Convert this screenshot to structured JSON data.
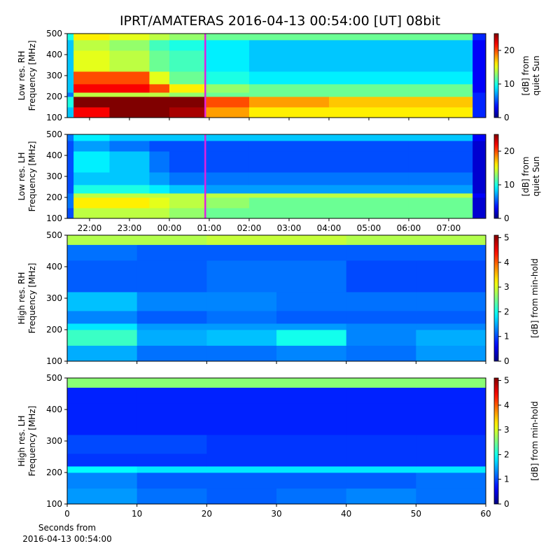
{
  "title": "IPRT/AMATERAS 2016-04-13 00:54:00 [UT]   08bit",
  "chart_data": [
    {
      "type": "heatmap",
      "ylabel": [
        "Low res. RH",
        "Frequency [MHz]"
      ],
      "colorbar_label": [
        "[dB] from",
        "quiet Sun"
      ],
      "xlim": [
        21.44,
        31.93
      ],
      "ylim": [
        100,
        500
      ],
      "yticks": [
        100,
        200,
        300,
        400,
        500
      ],
      "xticks": [
        {
          "value": 22,
          "label": "22:00"
        },
        {
          "value": 23,
          "label": "23:00"
        },
        {
          "value": 24,
          "label": "00:00"
        },
        {
          "value": 25,
          "label": "01:00"
        },
        {
          "value": 26,
          "label": "02:00"
        },
        {
          "value": 27,
          "label": "03:00"
        },
        {
          "value": 28,
          "label": "04:00"
        },
        {
          "value": 29,
          "label": "05:00"
        },
        {
          "value": 30,
          "label": "06:00"
        },
        {
          "value": 31,
          "label": "07:00"
        }
      ],
      "show_xticklabels": false,
      "clim": [
        0,
        25
      ],
      "cticks": [
        0,
        10,
        20
      ],
      "colormap": "jet",
      "marker_x": 24.9,
      "marker_color": "#e020e0",
      "xbins": [
        21.44,
        21.6,
        22.5,
        23.5,
        24.0,
        24.9,
        26,
        28,
        30,
        31.6,
        31.93
      ],
      "ybins": [
        100,
        150,
        200,
        220,
        260,
        320,
        420,
        470,
        500
      ],
      "z": [
        [
          8,
          22,
          25,
          25,
          24,
          18,
          16,
          16,
          16,
          4
        ],
        [
          10,
          25,
          25,
          25,
          25,
          20,
          18,
          17,
          17,
          4
        ],
        [
          6,
          14,
          14,
          14,
          13,
          12,
          12,
          12,
          12,
          4
        ],
        [
          8,
          22,
          22,
          20,
          16,
          13,
          12,
          12,
          12,
          3
        ],
        [
          8,
          20,
          20,
          15,
          12,
          10,
          9,
          9,
          9,
          3
        ],
        [
          8,
          15,
          14,
          12,
          11,
          9,
          8,
          8,
          8,
          3
        ],
        [
          8,
          14,
          13,
          11,
          10,
          9,
          8,
          8,
          8,
          3
        ],
        [
          10,
          16,
          15,
          14,
          13,
          12,
          12,
          12,
          12,
          4
        ]
      ]
    },
    {
      "type": "heatmap",
      "ylabel": [
        "Low res. LH",
        "Frequency [MHz]"
      ],
      "colorbar_label": [
        "[dB] from",
        "quiet Sun"
      ],
      "xlim": [
        21.44,
        31.93
      ],
      "ylim": [
        100,
        500
      ],
      "yticks": [
        100,
        200,
        300,
        400,
        500
      ],
      "xticks": [
        {
          "value": 22,
          "label": "22:00"
        },
        {
          "value": 23,
          "label": "23:00"
        },
        {
          "value": 24,
          "label": "00:00"
        },
        {
          "value": 25,
          "label": "01:00"
        },
        {
          "value": 26,
          "label": "02:00"
        },
        {
          "value": 27,
          "label": "03:00"
        },
        {
          "value": 28,
          "label": "04:00"
        },
        {
          "value": 29,
          "label": "05:00"
        },
        {
          "value": 30,
          "label": "06:00"
        },
        {
          "value": 31,
          "label": "07:00"
        }
      ],
      "show_xticklabels": true,
      "clim": [
        0,
        25
      ],
      "cticks": [
        0,
        10,
        20
      ],
      "colormap": "jet",
      "marker_x": 24.9,
      "marker_color": "#e020e0",
      "xbins": [
        21.44,
        21.6,
        22.5,
        23.5,
        24.0,
        24.9,
        26,
        28,
        30,
        31.6,
        31.93
      ],
      "ybins": [
        100,
        150,
        200,
        220,
        260,
        320,
        420,
        470,
        500
      ],
      "z": [
        [
          5,
          14,
          14,
          14,
          13,
          12,
          12,
          12,
          12,
          2
        ],
        [
          6,
          16,
          16,
          15,
          14,
          13,
          12,
          12,
          12,
          2
        ],
        [
          6,
          14,
          14,
          14,
          14,
          14,
          14,
          14,
          14,
          3
        ],
        [
          5,
          10,
          10,
          9,
          8,
          7,
          7,
          7,
          7,
          2
        ],
        [
          5,
          8,
          8,
          7,
          6,
          6,
          6,
          6,
          6,
          2
        ],
        [
          5,
          9,
          8,
          6,
          5,
          5,
          5,
          5,
          5,
          2
        ],
        [
          5,
          7,
          6,
          5,
          5,
          5,
          5,
          5,
          5,
          2
        ],
        [
          6,
          9,
          8,
          8,
          8,
          8,
          8,
          8,
          8,
          3
        ]
      ]
    },
    {
      "type": "heatmap",
      "ylabel": [
        "High res. RH",
        "Frequency [MHz]"
      ],
      "colorbar_label": [
        "[dB] from min-hold"
      ],
      "xlim": [
        0,
        60
      ],
      "ylim": [
        100,
        500
      ],
      "yticks": [
        100,
        200,
        300,
        400,
        500
      ],
      "xticks": [
        0,
        10,
        20,
        30,
        40,
        50,
        60
      ],
      "show_xticklabels": false,
      "clim": [
        0,
        5.1
      ],
      "cticks": [
        0,
        1,
        2,
        3,
        4,
        5
      ],
      "colormap": "jet",
      "xbins": [
        0,
        10,
        20,
        30,
        40,
        50,
        60
      ],
      "ybins": [
        100,
        150,
        200,
        220,
        260,
        320,
        420,
        470,
        500
      ],
      "z": [
        [
          1.5,
          1.2,
          1.2,
          1.3,
          1.2,
          1.4
        ],
        [
          2.2,
          1.5,
          1.6,
          2.0,
          1.3,
          1.5
        ],
        [
          1.8,
          1.4,
          1.4,
          1.4,
          1.3,
          1.3
        ],
        [
          1.3,
          1.1,
          1.2,
          1.1,
          1.1,
          1.1
        ],
        [
          1.6,
          1.3,
          1.3,
          1.2,
          1.2,
          1.2
        ],
        [
          1.1,
          1.1,
          1.2,
          1.2,
          1.0,
          1.0
        ],
        [
          1.2,
          1.1,
          1.1,
          1.1,
          1.1,
          1.1
        ],
        [
          2.8,
          2.8,
          2.9,
          2.9,
          2.8,
          2.8
        ]
      ]
    },
    {
      "type": "heatmap",
      "ylabel": [
        "High res. LH",
        "Frequency [MHz]"
      ],
      "colorbar_label": [
        "[dB] from min-hold"
      ],
      "xlim": [
        0,
        60
      ],
      "ylim": [
        100,
        500
      ],
      "yticks": [
        100,
        200,
        300,
        400,
        500
      ],
      "xticks": [
        0,
        10,
        20,
        30,
        40,
        50,
        60
      ],
      "show_xticklabels": true,
      "xlabel": [
        "Seconds from",
        "2016-04-13 00:54:00"
      ],
      "clim": [
        0,
        5.1
      ],
      "cticks": [
        0,
        1,
        2,
        3,
        4,
        5
      ],
      "colormap": "jet",
      "xbins": [
        0,
        10,
        20,
        30,
        40,
        50,
        60
      ],
      "ybins": [
        100,
        150,
        200,
        220,
        260,
        320,
        420,
        470,
        500
      ],
      "z": [
        [
          1.4,
          1.2,
          1.1,
          1.2,
          1.3,
          1.2
        ],
        [
          1.3,
          1.1,
          1.1,
          1.1,
          1.1,
          1.2
        ],
        [
          1.9,
          1.8,
          1.8,
          1.8,
          1.8,
          1.8
        ],
        [
          0.9,
          0.9,
          0.9,
          0.9,
          0.9,
          0.9
        ],
        [
          1.0,
          1.0,
          0.9,
          0.9,
          0.9,
          0.9
        ],
        [
          0.8,
          0.8,
          0.8,
          0.8,
          0.8,
          0.8
        ],
        [
          0.8,
          0.8,
          0.8,
          0.8,
          0.8,
          0.8
        ],
        [
          2.6,
          2.6,
          2.6,
          2.6,
          2.6,
          2.6
        ]
      ]
    }
  ]
}
